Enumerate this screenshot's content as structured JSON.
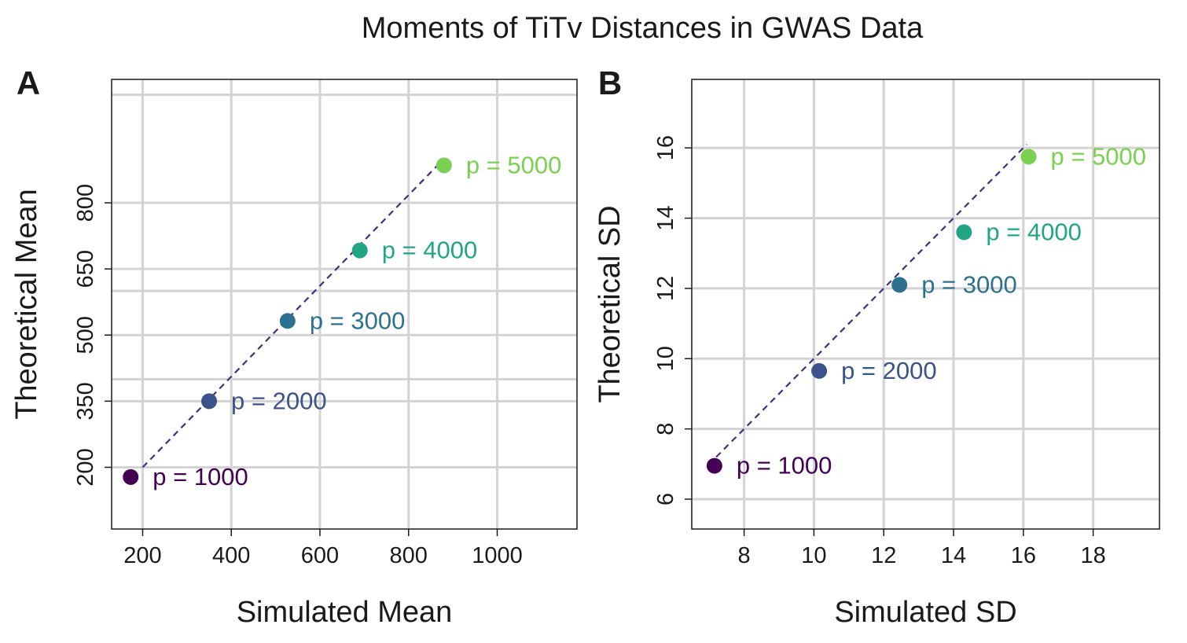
{
  "title": "Moments of TiTv Distances in GWAS Data",
  "chart_data": [
    {
      "type": "scatter",
      "panel_label": "A",
      "xlabel": "Simulated Mean",
      "ylabel": "Theoretical Mean",
      "xlim": [
        130,
        1180
      ],
      "ylim": [
        60,
        1080
      ],
      "xticks": [
        200,
        400,
        600,
        800,
        1000
      ],
      "yticks": [
        200,
        350,
        500,
        650,
        800
      ],
      "ygrid_extra": [
        400,
        600,
        1045
      ],
      "grid": true,
      "reference_line": {
        "style": "dashed",
        "color": "#472d7b",
        "x": [
          200,
          880
        ],
        "y": [
          200,
          900
        ]
      },
      "points": [
        {
          "label": "p = 1000",
          "x": 173,
          "y": 178,
          "color": "#440154"
        },
        {
          "label": "p = 2000",
          "x": 350,
          "y": 350,
          "color": "#3b528b"
        },
        {
          "label": "p = 3000",
          "x": 527,
          "y": 532,
          "color": "#2c728e"
        },
        {
          "label": "p = 4000",
          "x": 690,
          "y": 692,
          "color": "#21a585"
        },
        {
          "label": "p = 5000",
          "x": 880,
          "y": 885,
          "color": "#7ad151"
        }
      ]
    },
    {
      "type": "scatter",
      "panel_label": "B",
      "xlabel": "Simulated SD",
      "ylabel": "Theoretical SD",
      "xlim": [
        6.5,
        19.9
      ],
      "ylim": [
        5.15,
        17.95
      ],
      "xticks": [
        8,
        10,
        12,
        14,
        16,
        18
      ],
      "yticks": [
        6,
        8,
        10,
        12,
        14,
        16
      ],
      "grid": true,
      "reference_line": {
        "style": "dashed",
        "color": "#472d7b",
        "x": [
          7.2,
          16.1
        ],
        "y": [
          7.2,
          16.1
        ]
      },
      "points": [
        {
          "label": "p = 1000",
          "x": 7.15,
          "y": 6.95,
          "color": "#440154"
        },
        {
          "label": "p = 2000",
          "x": 10.15,
          "y": 9.65,
          "color": "#3b528b"
        },
        {
          "label": "p = 3000",
          "x": 12.45,
          "y": 12.1,
          "color": "#2c728e"
        },
        {
          "label": "p = 4000",
          "x": 14.3,
          "y": 13.6,
          "color": "#21a585"
        },
        {
          "label": "p = 5000",
          "x": 16.15,
          "y": 15.75,
          "color": "#7ad151"
        }
      ]
    }
  ]
}
